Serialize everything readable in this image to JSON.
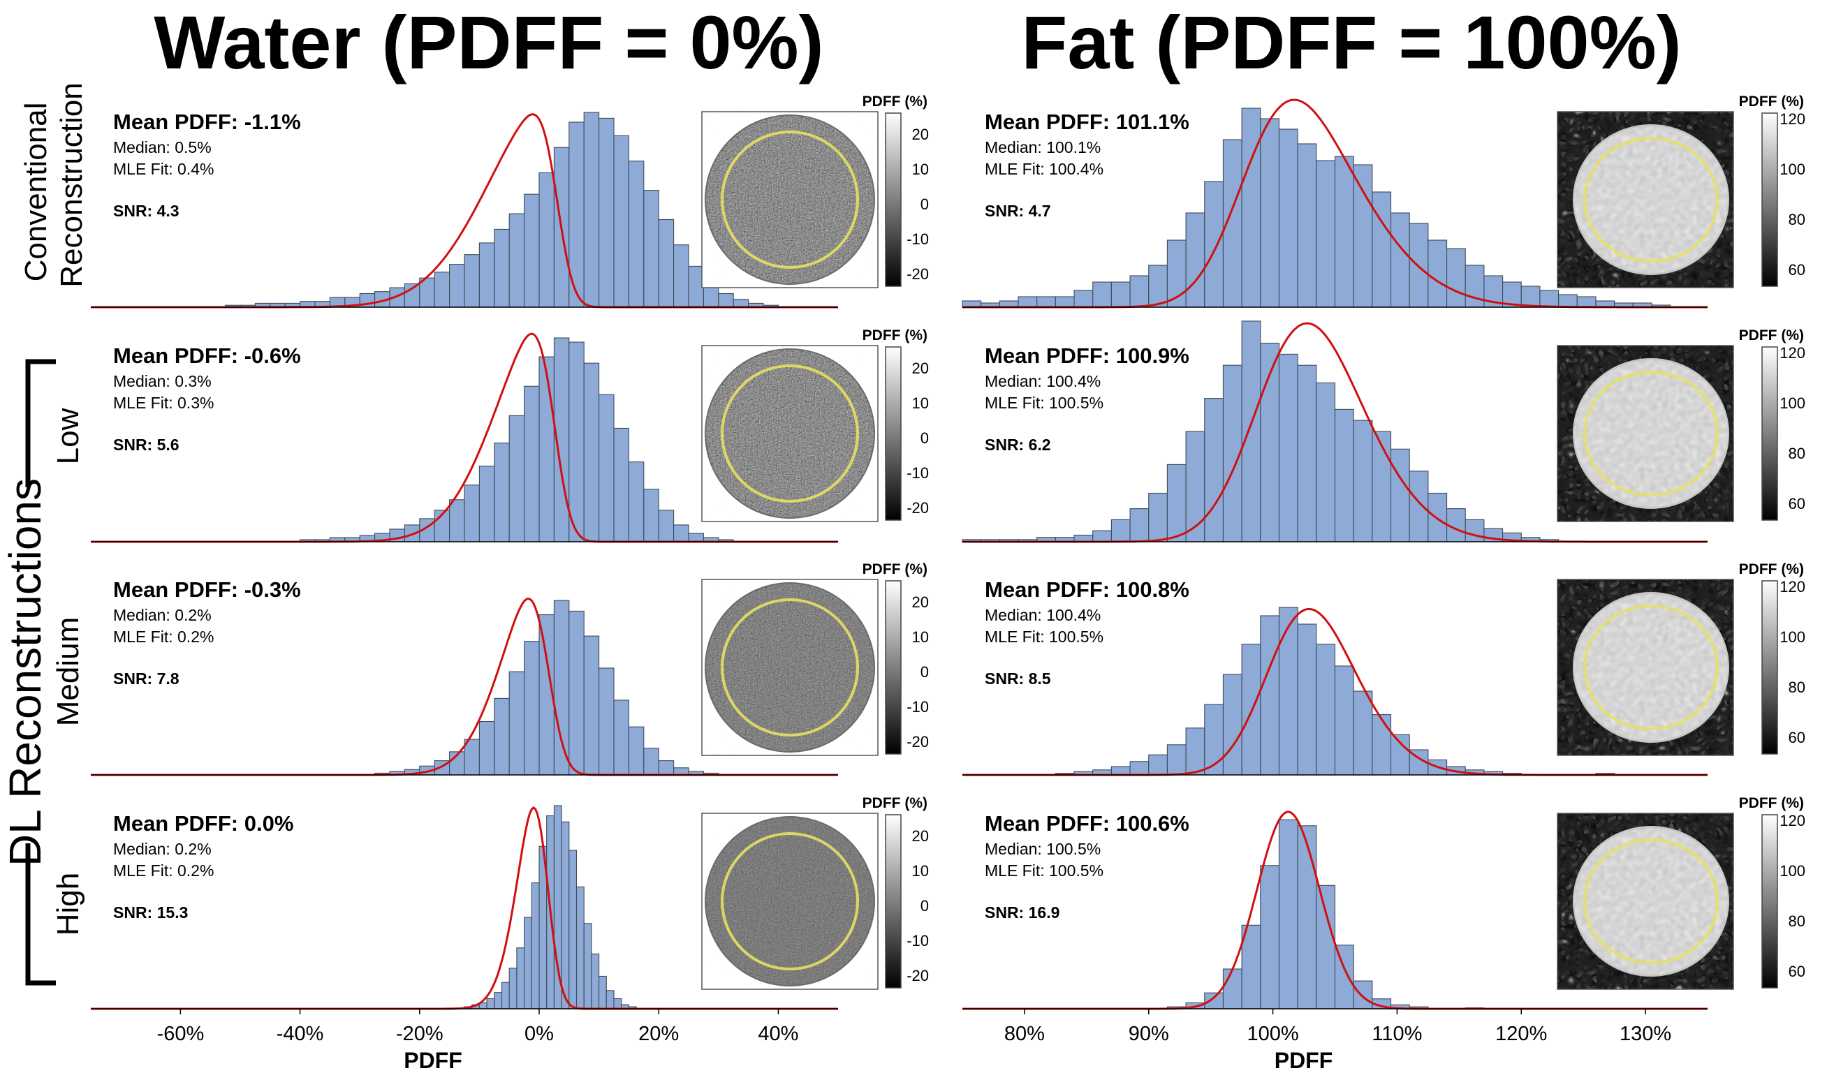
{
  "columns": [
    {
      "title": "Water (PDFF = 0%)"
    },
    {
      "title": "Fat (PDFF = 100%)"
    }
  ],
  "rows": [
    {
      "label_lines": [
        "Conventional",
        "Reconstruction"
      ]
    },
    {
      "label_lines": [
        "Low"
      ]
    },
    {
      "label_lines": [
        "Medium"
      ]
    },
    {
      "label_lines": [
        "High"
      ]
    }
  ],
  "group_label": "DL Reconstructions",
  "colorbar_title": "PDFF (%)",
  "chart_data": [
    {
      "type": "bar",
      "column": "water",
      "row": "conventional",
      "xlabel": "PDFF",
      "xlim": [
        -75,
        50
      ],
      "bin_width": 2.5,
      "bins": [
        [
          -52.5,
          0.01
        ],
        [
          -50,
          0.01
        ],
        [
          -47.5,
          0.02
        ],
        [
          -45,
          0.02
        ],
        [
          -42.5,
          0.02
        ],
        [
          -40,
          0.03
        ],
        [
          -37.5,
          0.03
        ],
        [
          -35,
          0.05
        ],
        [
          -32.5,
          0.05
        ],
        [
          -30,
          0.07
        ],
        [
          -27.5,
          0.08
        ],
        [
          -25,
          0.1
        ],
        [
          -22.5,
          0.12
        ],
        [
          -20,
          0.15
        ],
        [
          -17.5,
          0.18
        ],
        [
          -15,
          0.22
        ],
        [
          -12.5,
          0.27
        ],
        [
          -10,
          0.33
        ],
        [
          -7.5,
          0.4
        ],
        [
          -5,
          0.48
        ],
        [
          -2.5,
          0.58
        ],
        [
          0,
          0.69
        ],
        [
          2.5,
          0.82
        ],
        [
          5,
          0.95
        ],
        [
          7.5,
          1.0
        ],
        [
          10,
          0.97
        ],
        [
          12.5,
          0.88
        ],
        [
          15,
          0.75
        ],
        [
          17.5,
          0.6
        ],
        [
          20,
          0.45
        ],
        [
          22.5,
          0.32
        ],
        [
          25,
          0.21
        ],
        [
          27.5,
          0.13
        ],
        [
          30,
          0.07
        ],
        [
          32.5,
          0.04
        ],
        [
          35,
          0.02
        ],
        [
          37.5,
          0.01
        ]
      ],
      "peak": 0.93,
      "fit": {
        "mean": 3,
        "sd": 11,
        "skew": -5
      },
      "annotations": {
        "mean": "Mean PDFF: -1.1%",
        "median": "Median: 0.5%",
        "mle": "MLE Fit: 0.4%",
        "snr": "SNR: 4.3"
      },
      "colorbar": {
        "ticks": [
          "20",
          "10",
          "0",
          "-10",
          "-20"
        ]
      }
    },
    {
      "type": "bar",
      "column": "water",
      "row": "dl-low",
      "xlabel": "PDFF",
      "xlim": [
        -75,
        50
      ],
      "bin_width": 2.5,
      "bins": [
        [
          -40,
          0.01
        ],
        [
          -37.5,
          0.01
        ],
        [
          -35,
          0.02
        ],
        [
          -32.5,
          0.02
        ],
        [
          -30,
          0.03
        ],
        [
          -27.5,
          0.04
        ],
        [
          -25,
          0.06
        ],
        [
          -22.5,
          0.08
        ],
        [
          -20,
          0.11
        ],
        [
          -17.5,
          0.15
        ],
        [
          -15,
          0.2
        ],
        [
          -12.5,
          0.27
        ],
        [
          -10,
          0.36
        ],
        [
          -7.5,
          0.47
        ],
        [
          -5,
          0.6
        ],
        [
          -2.5,
          0.74
        ],
        [
          0,
          0.88
        ],
        [
          2.5,
          0.97
        ],
        [
          5,
          0.95
        ],
        [
          7.5,
          0.85
        ],
        [
          10,
          0.7
        ],
        [
          12.5,
          0.54
        ],
        [
          15,
          0.38
        ],
        [
          17.5,
          0.25
        ],
        [
          20,
          0.15
        ],
        [
          22.5,
          0.08
        ],
        [
          25,
          0.04
        ],
        [
          27.5,
          0.02
        ],
        [
          30,
          0.01
        ]
      ],
      "peak": 1.0,
      "fit": {
        "mean": 2.5,
        "sd": 9,
        "skew": -4
      },
      "annotations": {
        "mean": "Mean PDFF: -0.6%",
        "median": "Median: 0.3%",
        "mle": "MLE Fit: 0.3%",
        "snr": "SNR: 5.6"
      },
      "colorbar": {
        "ticks": [
          "20",
          "10",
          "0",
          "-10",
          "-20"
        ]
      }
    },
    {
      "type": "bar",
      "column": "water",
      "row": "dl-medium",
      "xlabel": "PDFF",
      "xlim": [
        -75,
        50
      ],
      "bin_width": 2.5,
      "bins": [
        [
          -27.5,
          0.01
        ],
        [
          -25,
          0.02
        ],
        [
          -22.5,
          0.03
        ],
        [
          -20,
          0.05
        ],
        [
          -17.5,
          0.08
        ],
        [
          -15,
          0.13
        ],
        [
          -12.5,
          0.2
        ],
        [
          -10,
          0.3
        ],
        [
          -7.5,
          0.43
        ],
        [
          -5,
          0.58
        ],
        [
          -2.5,
          0.75
        ],
        [
          0,
          0.9
        ],
        [
          2.5,
          0.98
        ],
        [
          5,
          0.92
        ],
        [
          7.5,
          0.78
        ],
        [
          10,
          0.6
        ],
        [
          12.5,
          0.42
        ],
        [
          15,
          0.27
        ],
        [
          17.5,
          0.15
        ],
        [
          20,
          0.08
        ],
        [
          22.5,
          0.04
        ],
        [
          25,
          0.02
        ],
        [
          27.5,
          0.01
        ]
      ],
      "peak": 0.85,
      "fit": {
        "mean": 1.5,
        "sd": 7,
        "skew": -3
      },
      "annotations": {
        "mean": "Mean PDFF: -0.3%",
        "median": "Median: 0.2%",
        "mle": "MLE Fit: 0.2%",
        "snr": "SNR: 7.8"
      },
      "colorbar": {
        "ticks": [
          "20",
          "10",
          "0",
          "-10",
          "-20"
        ]
      }
    },
    {
      "type": "bar",
      "column": "water",
      "row": "dl-high",
      "xlabel": "PDFF",
      "xlim": [
        -75,
        50
      ],
      "bin_width": 1.25,
      "bins": [
        [
          -12.5,
          0.01
        ],
        [
          -11.25,
          0.02
        ],
        [
          -10,
          0.03
        ],
        [
          -8.75,
          0.05
        ],
        [
          -7.5,
          0.08
        ],
        [
          -6.25,
          0.13
        ],
        [
          -5,
          0.2
        ],
        [
          -3.75,
          0.3
        ],
        [
          -2.5,
          0.45
        ],
        [
          -1.25,
          0.62
        ],
        [
          0,
          0.8
        ],
        [
          1.25,
          0.95
        ],
        [
          2.5,
          1.0
        ],
        [
          3.75,
          0.92
        ],
        [
          5,
          0.78
        ],
        [
          6.25,
          0.6
        ],
        [
          7.5,
          0.42
        ],
        [
          8.75,
          0.27
        ],
        [
          10,
          0.16
        ],
        [
          11.25,
          0.09
        ],
        [
          12.5,
          0.05
        ],
        [
          13.75,
          0.02
        ],
        [
          15,
          0.01
        ]
      ],
      "peak": 0.97,
      "fit": {
        "mean": 1.2,
        "sd": 4,
        "skew": -2
      },
      "annotations": {
        "mean": "Mean PDFF: 0.0%",
        "median": "Median: 0.2%",
        "mle": "MLE Fit: 0.2%",
        "snr": "SNR: 15.3"
      },
      "colorbar": {
        "ticks": [
          "20",
          "10",
          "0",
          "-10",
          "-20"
        ]
      }
    },
    {
      "type": "bar",
      "column": "fat",
      "row": "conventional",
      "xlabel": "PDFF",
      "xlim": [
        75,
        135
      ],
      "bin_width": 1.5,
      "bins": [
        [
          75,
          0.03
        ],
        [
          76.5,
          0.02
        ],
        [
          78,
          0.03
        ],
        [
          79.5,
          0.05
        ],
        [
          81,
          0.05
        ],
        [
          82.5,
          0.05
        ],
        [
          84,
          0.08
        ],
        [
          85.5,
          0.12
        ],
        [
          87,
          0.12
        ],
        [
          88.5,
          0.15
        ],
        [
          90,
          0.2
        ],
        [
          91.5,
          0.32
        ],
        [
          93,
          0.45
        ],
        [
          94.5,
          0.6
        ],
        [
          96,
          0.8
        ],
        [
          97.5,
          0.95
        ],
        [
          99,
          0.9
        ],
        [
          100.5,
          0.85
        ],
        [
          102,
          0.78
        ],
        [
          103.5,
          0.7
        ],
        [
          105,
          0.72
        ],
        [
          106.5,
          0.68
        ],
        [
          108,
          0.55
        ],
        [
          109.5,
          0.45
        ],
        [
          111,
          0.4
        ],
        [
          112.5,
          0.32
        ],
        [
          114,
          0.28
        ],
        [
          115.5,
          0.2
        ],
        [
          117,
          0.15
        ],
        [
          118.5,
          0.12
        ],
        [
          120,
          0.1
        ],
        [
          121.5,
          0.08
        ],
        [
          123,
          0.06
        ],
        [
          124.5,
          0.05
        ],
        [
          126,
          0.03
        ],
        [
          127.5,
          0.02
        ],
        [
          129,
          0.02
        ],
        [
          130.5,
          0.01
        ]
      ],
      "peak": 1.0,
      "fit": {
        "mean": 98,
        "sd": 7,
        "skew": 2
      },
      "annotations": {
        "mean": "Mean PDFF: 101.1%",
        "median": "Median: 100.1%",
        "mle": "MLE Fit: 100.4%",
        "snr": "SNR: 4.7"
      },
      "colorbar": {
        "ticks": [
          "120",
          "100",
          "80",
          "60"
        ]
      }
    },
    {
      "type": "bar",
      "column": "fat",
      "row": "dl-low",
      "xlabel": "PDFF",
      "xlim": [
        75,
        135
      ],
      "bin_width": 1.5,
      "bins": [
        [
          75,
          0.01
        ],
        [
          76.5,
          0.01
        ],
        [
          78,
          0.01
        ],
        [
          79.5,
          0.01
        ],
        [
          81,
          0.02
        ],
        [
          82.5,
          0.02
        ],
        [
          84,
          0.03
        ],
        [
          85.5,
          0.05
        ],
        [
          87,
          0.1
        ],
        [
          88.5,
          0.15
        ],
        [
          90,
          0.22
        ],
        [
          91.5,
          0.35
        ],
        [
          93,
          0.5
        ],
        [
          94.5,
          0.65
        ],
        [
          96,
          0.8
        ],
        [
          97.5,
          1.0
        ],
        [
          99,
          0.9
        ],
        [
          100.5,
          0.85
        ],
        [
          102,
          0.8
        ],
        [
          103.5,
          0.72
        ],
        [
          105,
          0.6
        ],
        [
          106.5,
          0.55
        ],
        [
          108,
          0.5
        ],
        [
          109.5,
          0.42
        ],
        [
          111,
          0.32
        ],
        [
          112.5,
          0.22
        ],
        [
          114,
          0.15
        ],
        [
          115.5,
          0.1
        ],
        [
          117,
          0.06
        ],
        [
          118.5,
          0.04
        ],
        [
          120,
          0.02
        ],
        [
          121.5,
          0.01
        ]
      ],
      "peak": 1.05,
      "fit": {
        "mean": 99.5,
        "sd": 6,
        "skew": 1.5
      },
      "annotations": {
        "mean": "Mean PDFF: 100.9%",
        "median": "Median: 100.4%",
        "mle": "MLE Fit: 100.5%",
        "snr": "SNR: 6.2"
      },
      "colorbar": {
        "ticks": [
          "120",
          "100",
          "80",
          "60"
        ]
      }
    },
    {
      "type": "bar",
      "column": "fat",
      "row": "dl-medium",
      "xlabel": "PDFF",
      "xlim": [
        75,
        135
      ],
      "bin_width": 1.5,
      "bins": [
        [
          82.5,
          0.01
        ],
        [
          84,
          0.02
        ],
        [
          85.5,
          0.03
        ],
        [
          87,
          0.05
        ],
        [
          88.5,
          0.08
        ],
        [
          90,
          0.12
        ],
        [
          91.5,
          0.18
        ],
        [
          93,
          0.28
        ],
        [
          94.5,
          0.42
        ],
        [
          96,
          0.6
        ],
        [
          97.5,
          0.78
        ],
        [
          99,
          0.95
        ],
        [
          100.5,
          1.0
        ],
        [
          102,
          0.9
        ],
        [
          103.5,
          0.78
        ],
        [
          105,
          0.65
        ],
        [
          106.5,
          0.5
        ],
        [
          108,
          0.36
        ],
        [
          109.5,
          0.24
        ],
        [
          111,
          0.15
        ],
        [
          112.5,
          0.09
        ],
        [
          114,
          0.05
        ],
        [
          115.5,
          0.03
        ],
        [
          117,
          0.02
        ],
        [
          118.5,
          0.01
        ],
        [
          126,
          0.01
        ]
      ],
      "peak": 0.8,
      "fit": {
        "mean": 100.2,
        "sd": 5,
        "skew": 1.5
      },
      "annotations": {
        "mean": "Mean PDFF: 100.8%",
        "median": "Median: 100.4%",
        "mle": "MLE Fit: 100.5%",
        "snr": "SNR: 8.5"
      },
      "colorbar": {
        "ticks": [
          "120",
          "100",
          "80",
          "60"
        ]
      }
    },
    {
      "type": "bar",
      "column": "fat",
      "row": "dl-high",
      "xlabel": "PDFF",
      "xlim": [
        75,
        135
      ],
      "bin_width": 1.5,
      "bins": [
        [
          91.5,
          0.01
        ],
        [
          93,
          0.03
        ],
        [
          94.5,
          0.08
        ],
        [
          96,
          0.2
        ],
        [
          97.5,
          0.42
        ],
        [
          99,
          0.72
        ],
        [
          100.5,
          0.95
        ],
        [
          102,
          0.92
        ],
        [
          103.5,
          0.62
        ],
        [
          105,
          0.32
        ],
        [
          106.5,
          0.14
        ],
        [
          108,
          0.05
        ],
        [
          109.5,
          0.02
        ],
        [
          111,
          0.01
        ],
        [
          115.5,
          0.005
        ]
      ],
      "peak": 0.95,
      "fit": {
        "mean": 100.3,
        "sd": 2.7,
        "skew": 0.5
      },
      "annotations": {
        "mean": "Mean PDFF: 100.6%",
        "median": "Median: 100.5%",
        "mle": "MLE Fit: 100.5%",
        "snr": "SNR: 16.9"
      },
      "colorbar": {
        "ticks": [
          "120",
          "100",
          "80",
          "60"
        ]
      }
    }
  ],
  "axes": [
    {
      "column": "water",
      "xlabel": "PDFF",
      "ticks": [
        {
          "value": -60,
          "label": "-60%"
        },
        {
          "value": -40,
          "label": "-40%"
        },
        {
          "value": -20,
          "label": "-20%"
        },
        {
          "value": 0,
          "label": "0%"
        },
        {
          "value": 20,
          "label": "20%"
        },
        {
          "value": 40,
          "label": "40%"
        }
      ]
    },
    {
      "column": "fat",
      "xlabel": "PDFF",
      "ticks": [
        {
          "value": 80,
          "label": "80%"
        },
        {
          "value": 90,
          "label": "90%"
        },
        {
          "value": 100,
          "label": "100%"
        },
        {
          "value": 110,
          "label": "110%"
        },
        {
          "value": 120,
          "label": "120%"
        },
        {
          "value": 130,
          "label": "130%"
        }
      ]
    }
  ]
}
